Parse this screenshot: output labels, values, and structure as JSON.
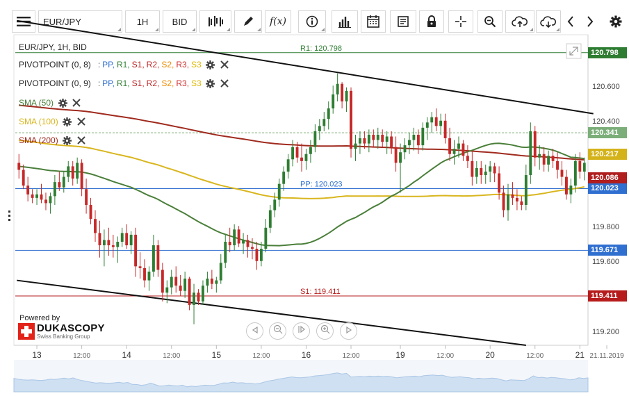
{
  "toolbar": {
    "symbol": "EUR/JPY",
    "timeframe": "1H",
    "side": "BID",
    "icons": [
      "menu-icon",
      "bar-style-icon",
      "pencil-icon",
      "function-icon",
      "info-icon",
      "volume-icon",
      "calendar-icon",
      "news-icon",
      "lock-icon",
      "crosshair-icon",
      "zoom-icon",
      "cloud-upload-icon",
      "cloud-download-icon",
      "arrow-left-icon",
      "arrow-right-icon",
      "gear-icon"
    ]
  },
  "legend": {
    "title": "EUR/JPY, 1H, BID",
    "pivot1": {
      "label": "PIVOTPOINT (0, 8)",
      "sep": ":",
      "pp": "PP,",
      "r1": "R1,",
      "s1": "S1,",
      "r2": "R2,",
      "s2": "S2,",
      "r3": "R3,",
      "s3": "S3"
    },
    "pivot2": {
      "label": "PIVOTPOINT (0, 9)",
      "sep": ":",
      "pp": "PP,",
      "r1": "R1,",
      "s1": "S1,",
      "r2": "R2,",
      "s2": "S2,",
      "r3": "R3,",
      "s3": "S3"
    },
    "sma50": "SMA (50)",
    "sma100": "SMA (100)",
    "sma200": "SMA (200)"
  },
  "branding": {
    "powered_by": "Powered by",
    "name": "DUKASCOPY",
    "tagline": "Swiss Banking Group"
  },
  "colors": {
    "pp": "#2f6fd0",
    "r1": "#2e7d32",
    "s1": "#b71c1c",
    "r2": "#c62828",
    "s2": "#ef8a00",
    "r3": "#d32f2f",
    "s3": "#e0b800",
    "sma50": "#4a7f3a",
    "sma100": "#d9b61e",
    "sma200": "#a02a1e",
    "candle_up": "#2e7d32",
    "candle_down": "#c62828"
  },
  "chart_data": {
    "type": "candlestick",
    "instrument": "EUR/JPY",
    "interval": "1H",
    "ylim": [
      119.13,
      120.9
    ],
    "y_ticks": [
      119.2,
      119.4,
      119.6,
      119.8,
      120.0,
      120.2,
      120.4,
      120.6
    ],
    "y_tick_labels": [
      "119.200",
      "",
      "119.600",
      "119.800",
      "",
      "",
      "120.400",
      "120.600"
    ],
    "x_labels": [
      {
        "bar": 4,
        "text": "13",
        "kind": "day"
      },
      {
        "bar": 14,
        "text": "12:00",
        "kind": "time"
      },
      {
        "bar": 24,
        "text": "14",
        "kind": "day"
      },
      {
        "bar": 34,
        "text": "12:00",
        "kind": "time"
      },
      {
        "bar": 44,
        "text": "15",
        "kind": "day"
      },
      {
        "bar": 54,
        "text": "12:00",
        "kind": "time"
      },
      {
        "bar": 64,
        "text": "16",
        "kind": "day"
      },
      {
        "bar": 74,
        "text": "12:00",
        "kind": "time"
      },
      {
        "bar": 85,
        "text": "19",
        "kind": "day"
      },
      {
        "bar": 95,
        "text": "12:00",
        "kind": "time"
      },
      {
        "bar": 105,
        "text": "20",
        "kind": "day"
      },
      {
        "bar": 115,
        "text": "12:00",
        "kind": "time"
      },
      {
        "bar": 125,
        "text": "21",
        "kind": "day"
      },
      {
        "bar": 131,
        "text": "21.11.2019",
        "kind": "date"
      }
    ],
    "levels": [
      {
        "name": "R1",
        "label": "R1: 120.798",
        "value": 120.798,
        "color": "#2e7d32",
        "tag": "120.798"
      },
      {
        "name": "PP",
        "label": "PP: 120.023",
        "value": 120.023,
        "color": "#2f6fd0",
        "tag": "120.023"
      },
      {
        "name": "S1",
        "label": "S1: 119.411",
        "value": 119.411,
        "color": "#b71c1c",
        "tag": "119.411"
      },
      {
        "name": "PP_prev",
        "label": "",
        "value": 119.671,
        "color": "#2f6fd0",
        "tag": "119.671"
      }
    ],
    "price_tags": [
      {
        "value": 120.341,
        "text": "120.341",
        "color": "#7cae7a"
      },
      {
        "value": 120.217,
        "text": "120.217",
        "color": "#d4b21a"
      },
      {
        "value": 120.086,
        "text": "120.086",
        "color": "#b01e1e"
      }
    ],
    "current_price": 120.341,
    "trend_upper": [
      [
        0,
        120.98
      ],
      [
        128,
        120.45
      ]
    ],
    "trend_lower": [
      [
        0,
        119.5
      ],
      [
        113,
        119.13
      ]
    ],
    "candles": [
      [
        120.17,
        120.22,
        120.08,
        120.13
      ],
      [
        120.13,
        120.16,
        120.02,
        120.04
      ],
      [
        120.04,
        120.09,
        119.95,
        119.99
      ],
      [
        119.99,
        120.02,
        119.94,
        119.97
      ],
      [
        119.97,
        120.02,
        119.93,
        119.99
      ],
      [
        119.99,
        120.05,
        119.94,
        119.96
      ],
      [
        119.96,
        120.0,
        119.9,
        119.94
      ],
      [
        119.94,
        120.0,
        119.88,
        119.98
      ],
      [
        119.98,
        120.1,
        119.93,
        120.06
      ],
      [
        120.06,
        120.12,
        120.01,
        120.03
      ],
      [
        120.03,
        120.12,
        120.0,
        120.09
      ],
      [
        120.09,
        120.18,
        120.06,
        120.15
      ],
      [
        120.15,
        120.18,
        120.04,
        120.08
      ],
      [
        120.08,
        120.2,
        120.05,
        120.17
      ],
      [
        120.17,
        120.19,
        119.98,
        120.02
      ],
      [
        120.02,
        120.08,
        119.88,
        119.93
      ],
      [
        119.93,
        119.97,
        119.82,
        119.85
      ],
      [
        119.85,
        119.9,
        119.72,
        119.77
      ],
      [
        119.77,
        119.84,
        119.63,
        119.7
      ],
      [
        119.7,
        119.79,
        119.58,
        119.73
      ],
      [
        119.73,
        119.8,
        119.64,
        119.7
      ],
      [
        119.7,
        119.76,
        119.63,
        119.69
      ],
      [
        119.69,
        119.75,
        119.6,
        119.72
      ],
      [
        119.72,
        119.8,
        119.69,
        119.77
      ],
      [
        119.77,
        119.82,
        119.68,
        119.7
      ],
      [
        119.7,
        119.78,
        119.65,
        119.76
      ],
      [
        119.76,
        119.8,
        119.52,
        119.58
      ],
      [
        119.58,
        119.66,
        119.51,
        119.57
      ],
      [
        119.57,
        119.62,
        119.46,
        119.5
      ],
      [
        119.5,
        119.58,
        119.44,
        119.55
      ],
      [
        119.55,
        119.76,
        119.52,
        119.7
      ],
      [
        119.7,
        119.73,
        119.52,
        119.56
      ],
      [
        119.56,
        119.6,
        119.38,
        119.43
      ],
      [
        119.43,
        119.5,
        119.37,
        119.46
      ],
      [
        119.46,
        119.56,
        119.42,
        119.52
      ],
      [
        119.52,
        119.58,
        119.43,
        119.47
      ],
      [
        119.47,
        119.53,
        119.41,
        119.44
      ],
      [
        119.44,
        119.55,
        119.4,
        119.51
      ],
      [
        119.51,
        119.52,
        119.33,
        119.36
      ],
      [
        119.36,
        119.48,
        119.25,
        119.43
      ],
      [
        119.43,
        119.45,
        119.36,
        119.38
      ],
      [
        119.38,
        119.5,
        119.36,
        119.47
      ],
      [
        119.47,
        119.55,
        119.43,
        119.51
      ],
      [
        119.51,
        119.56,
        119.45,
        119.48
      ],
      [
        119.48,
        119.52,
        119.43,
        119.5
      ],
      [
        119.5,
        119.65,
        119.48,
        119.6
      ],
      [
        119.6,
        119.76,
        119.57,
        119.72
      ],
      [
        119.72,
        119.8,
        119.66,
        119.7
      ],
      [
        119.7,
        119.82,
        119.67,
        119.79
      ],
      [
        119.79,
        119.81,
        119.69,
        119.71
      ],
      [
        119.71,
        119.77,
        119.65,
        119.73
      ],
      [
        119.73,
        119.76,
        119.63,
        119.69
      ],
      [
        119.69,
        119.74,
        119.62,
        119.68
      ],
      [
        119.68,
        119.72,
        119.56,
        119.61
      ],
      [
        119.61,
        119.72,
        119.58,
        119.68
      ],
      [
        119.68,
        119.85,
        119.66,
        119.8
      ],
      [
        119.8,
        119.93,
        119.77,
        119.9
      ],
      [
        119.9,
        120.0,
        119.86,
        119.96
      ],
      [
        119.96,
        120.08,
        119.92,
        120.05
      ],
      [
        120.05,
        120.15,
        120.01,
        120.12
      ],
      [
        120.12,
        120.22,
        120.08,
        120.19
      ],
      [
        120.19,
        120.3,
        120.15,
        120.26
      ],
      [
        120.26,
        120.29,
        120.17,
        120.2
      ],
      [
        120.2,
        120.28,
        120.12,
        120.18
      ],
      [
        120.18,
        120.25,
        120.13,
        120.22
      ],
      [
        120.22,
        120.3,
        120.17,
        120.26
      ],
      [
        120.26,
        120.39,
        120.23,
        120.35
      ],
      [
        120.35,
        120.42,
        120.3,
        120.38
      ],
      [
        120.38,
        120.46,
        120.35,
        120.42
      ],
      [
        120.42,
        120.52,
        120.36,
        120.48
      ],
      [
        120.48,
        120.61,
        120.45,
        120.56
      ],
      [
        120.56,
        120.68,
        120.52,
        120.62
      ],
      [
        120.62,
        120.63,
        120.48,
        120.52
      ],
      [
        120.52,
        120.6,
        120.46,
        120.58
      ],
      [
        120.58,
        120.6,
        120.2,
        120.25
      ],
      [
        120.25,
        120.33,
        120.18,
        120.28
      ],
      [
        120.28,
        120.35,
        120.22,
        120.31
      ],
      [
        120.31,
        120.35,
        120.25,
        120.28
      ],
      [
        120.28,
        120.36,
        120.23,
        120.33
      ],
      [
        120.33,
        120.36,
        120.26,
        120.3
      ],
      [
        120.3,
        120.37,
        120.25,
        120.33
      ],
      [
        120.33,
        120.36,
        120.26,
        120.29
      ],
      [
        120.29,
        120.35,
        120.22,
        120.32
      ],
      [
        120.32,
        120.35,
        120.22,
        120.26
      ],
      [
        120.26,
        120.32,
        120.12,
        120.17
      ],
      [
        120.17,
        120.28,
        120.0,
        120.23
      ],
      [
        120.23,
        120.31,
        120.19,
        120.27
      ],
      [
        120.27,
        120.34,
        120.22,
        120.3
      ],
      [
        120.3,
        120.37,
        120.24,
        120.33
      ],
      [
        120.33,
        120.36,
        120.22,
        120.27
      ],
      [
        120.27,
        120.4,
        120.24,
        120.37
      ],
      [
        120.37,
        120.43,
        120.3,
        120.4
      ],
      [
        120.4,
        120.46,
        120.34,
        120.43
      ],
      [
        120.43,
        120.48,
        120.35,
        120.38
      ],
      [
        120.38,
        120.45,
        120.33,
        120.41
      ],
      [
        120.41,
        120.45,
        120.28,
        120.31
      ],
      [
        120.31,
        120.37,
        120.18,
        120.22
      ],
      [
        120.22,
        120.3,
        120.16,
        120.25
      ],
      [
        120.25,
        120.32,
        120.2,
        120.28
      ],
      [
        120.28,
        120.3,
        120.18,
        120.21
      ],
      [
        120.21,
        120.27,
        120.14,
        120.18
      ],
      [
        120.18,
        120.24,
        120.04,
        120.09
      ],
      [
        120.09,
        120.18,
        120.05,
        120.14
      ],
      [
        120.14,
        120.18,
        120.05,
        120.1
      ],
      [
        120.1,
        120.16,
        120.05,
        120.12
      ],
      [
        120.12,
        120.18,
        120.06,
        120.15
      ],
      [
        120.15,
        120.17,
        120.06,
        120.11
      ],
      [
        120.11,
        120.15,
        119.96,
        120.0
      ],
      [
        120.0,
        120.04,
        119.86,
        119.9
      ],
      [
        119.9,
        120.05,
        119.84,
        119.99
      ],
      [
        119.99,
        120.06,
        119.93,
        119.97
      ],
      [
        119.97,
        120.02,
        119.9,
        119.95
      ],
      [
        119.95,
        119.98,
        119.9,
        119.93
      ],
      [
        119.93,
        120.16,
        119.9,
        120.1
      ],
      [
        120.1,
        120.4,
        120.05,
        120.35
      ],
      [
        120.35,
        120.38,
        120.15,
        120.2
      ],
      [
        120.2,
        120.27,
        120.13,
        120.22
      ],
      [
        120.22,
        120.26,
        120.12,
        120.16
      ],
      [
        120.16,
        120.24,
        120.12,
        120.21
      ],
      [
        120.21,
        120.25,
        120.14,
        120.18
      ],
      [
        120.18,
        120.23,
        120.08,
        120.13
      ],
      [
        120.13,
        120.18,
        120.04,
        120.09
      ],
      [
        120.09,
        120.13,
        119.96,
        119.99
      ],
      [
        119.99,
        120.08,
        119.94,
        120.04
      ],
      [
        120.04,
        120.22,
        120.0,
        120.18
      ],
      [
        120.18,
        120.23,
        120.08,
        120.12
      ],
      [
        120.12,
        120.2,
        120.07,
        120.17
      ]
    ]
  }
}
